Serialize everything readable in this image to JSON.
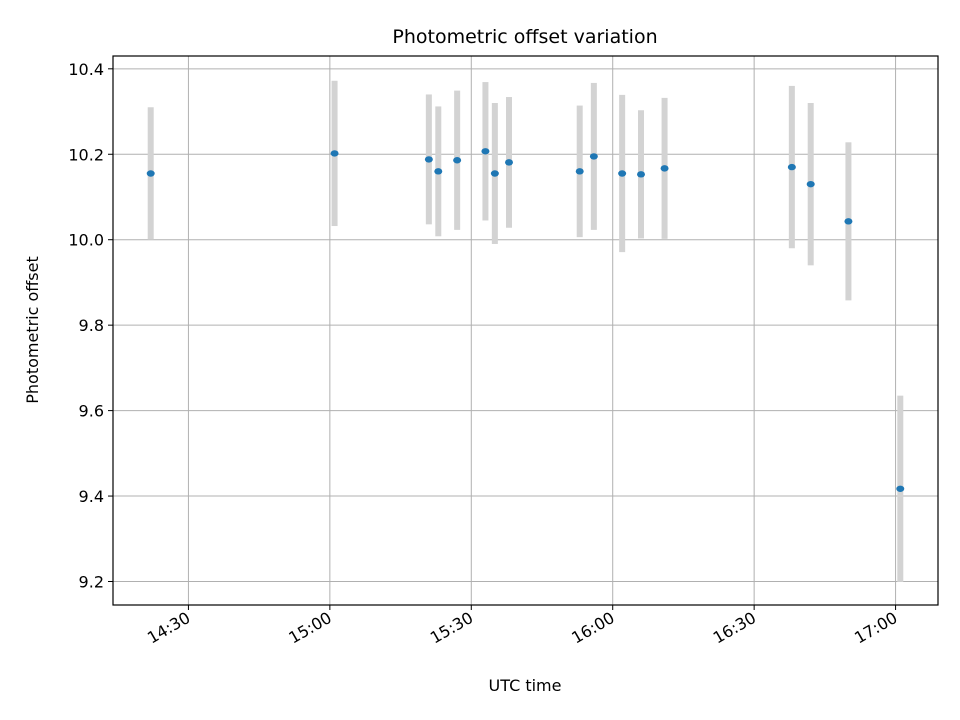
{
  "chart_data": {
    "type": "scatter",
    "title": "Photometric offset variation",
    "xlabel": "UTC time",
    "ylabel": "Photometric offset",
    "x_ticks": [
      "14:30",
      "15:00",
      "15:30",
      "16:00",
      "16:30",
      "17:00"
    ],
    "y_ticks": [
      9.2,
      9.4,
      9.6,
      9.8,
      10.0,
      10.2,
      10.4
    ],
    "xlim": [
      "14:14",
      "17:09"
    ],
    "ylim": [
      9.145,
      10.43
    ],
    "grid": true,
    "colors": {
      "point": "#1f77b4",
      "errorbar": "#d3d3d3",
      "grid": "#b0b0b0"
    },
    "points": [
      {
        "x": "14:22",
        "y": 10.155,
        "err": 0.155
      },
      {
        "x": "15:01",
        "y": 10.202,
        "err": 0.17
      },
      {
        "x": "15:21",
        "y": 10.188,
        "err": 0.152
      },
      {
        "x": "15:23",
        "y": 10.16,
        "err": 0.152
      },
      {
        "x": "15:27",
        "y": 10.186,
        "err": 0.163
      },
      {
        "x": "15:33",
        "y": 10.207,
        "err": 0.162
      },
      {
        "x": "15:35",
        "y": 10.155,
        "err": 0.165
      },
      {
        "x": "15:38",
        "y": 10.181,
        "err": 0.153
      },
      {
        "x": "15:53",
        "y": 10.16,
        "err": 0.154
      },
      {
        "x": "15:56",
        "y": 10.195,
        "err": 0.172
      },
      {
        "x": "16:02",
        "y": 10.155,
        "err": 0.184
      },
      {
        "x": "16:06",
        "y": 10.153,
        "err": 0.15
      },
      {
        "x": "16:11",
        "y": 10.167,
        "err": 0.165
      },
      {
        "x": "16:38",
        "y": 10.17,
        "err": 0.19
      },
      {
        "x": "16:42",
        "y": 10.13,
        "err": 0.19
      },
      {
        "x": "16:50",
        "y": 10.043,
        "err": 0.185
      },
      {
        "x": "17:01",
        "y": 9.417,
        "err": 0.218
      }
    ]
  }
}
